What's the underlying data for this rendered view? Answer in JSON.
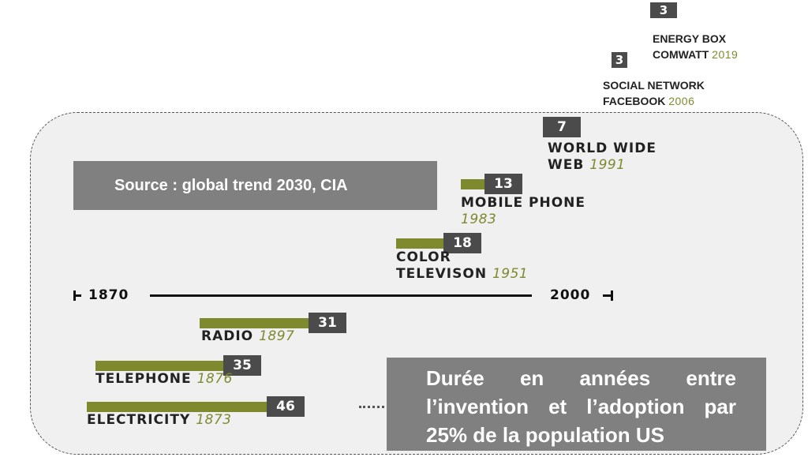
{
  "chart_data": {
    "type": "bar",
    "title": "",
    "source": "Source : global trend 2030, CIA",
    "note": "Durée en années entre l’invention et l’adoption par 25% de la population US",
    "axis": {
      "start_label": "1870",
      "end_label": "2000"
    },
    "items": [
      {
        "id": "electricity",
        "name": "ELECTRICITY",
        "year": "1873",
        "value": 46
      },
      {
        "id": "telephone",
        "name": "TELEPHONE",
        "year": "1876",
        "value": 35
      },
      {
        "id": "radio",
        "name": "RADIO",
        "year": "1897",
        "value": 31
      },
      {
        "id": "color-tv",
        "name": "COLOR TELEVISON",
        "name_lines": [
          "COLOR",
          "TELEVISON"
        ],
        "year": "1951",
        "value": 18
      },
      {
        "id": "mobile-phone",
        "name": "MOBILE PHONE",
        "year": "1983",
        "value": 13
      },
      {
        "id": "www",
        "name": "WORLD WIDE WEB",
        "name_lines": [
          "WORLD WIDE",
          "WEB"
        ],
        "year": "1991",
        "value": 7
      },
      {
        "id": "facebook",
        "name": "SOCIAL NETWORK FACEBOOK",
        "name_lines": [
          "SOCIAL NETWORK",
          "FACEBOOK"
        ],
        "year": "2006",
        "value": 3
      },
      {
        "id": "energy-box",
        "name": "ENERGY BOX COMWATT",
        "name_lines": [
          "ENERGY BOX",
          "COMWATT"
        ],
        "year": "2019",
        "value": 3
      }
    ],
    "colors": {
      "bar": "#7f8a2e",
      "value_box": "#4b4b4b",
      "info_box": "#808080",
      "year": "#7f8a2e"
    }
  }
}
